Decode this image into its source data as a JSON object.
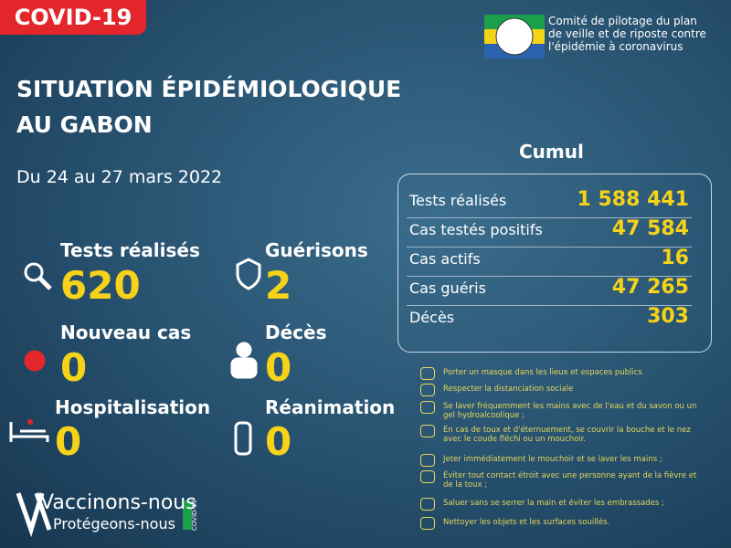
{
  "badge": "COVID-19",
  "org": {
    "lines": [
      "Comité de pilotage du plan",
      "de veille et de riposte contre",
      "l'épidémie à coronavirus"
    ]
  },
  "title": {
    "lines": [
      "SITUATION ÉPIDÉMIOLOGIQUE",
      "AU GABON"
    ]
  },
  "date": "Du 24 au 27 mars 2022",
  "stats": [
    {
      "label": "Tests réalisés",
      "value": "620"
    },
    {
      "label": "Guérisons",
      "value": "2"
    },
    {
      "label": "Nouveau cas",
      "value": "0"
    },
    {
      "label": "Décès",
      "value": "0"
    },
    {
      "label": "Hospitalisation",
      "value": "0"
    },
    {
      "label": "Réanimation",
      "value": "0"
    }
  ],
  "cumul": {
    "title": "Cumul",
    "rows": [
      [
        "Tests réalisés",
        "1 588 441"
      ],
      [
        "Cas testés positifs",
        "47 584"
      ],
      [
        "Cas actifs",
        "16"
      ],
      [
        "Cas guéris",
        "47 265"
      ],
      [
        "Décès",
        "303"
      ]
    ]
  },
  "advice": [
    "Porter un masque dans les lieux et espaces publics",
    "Respecter la distanciation sociale",
    "Se laver fréquemment les mains avec de l'eau et du savon ou un gel hydroalcoolique ;",
    "En cas de toux et d'éternuement, se couvrir la bouche et le nez avec le coude fléchi ou un mouchoir.",
    "Jeter immédiatement le mouchoir et se laver les mains ;",
    "Éviter tout contact étroit avec une personne ayant de la fièvre et de la toux ;",
    "Saluer sans se serrer la main et éviter les embrassades ;",
    "Nettoyer les objets et les surfaces souillés."
  ],
  "footer": {
    "line1": "Vaccinons-nous",
    "line2": "Protégeons-nous",
    "tag": "COVID-19"
  }
}
